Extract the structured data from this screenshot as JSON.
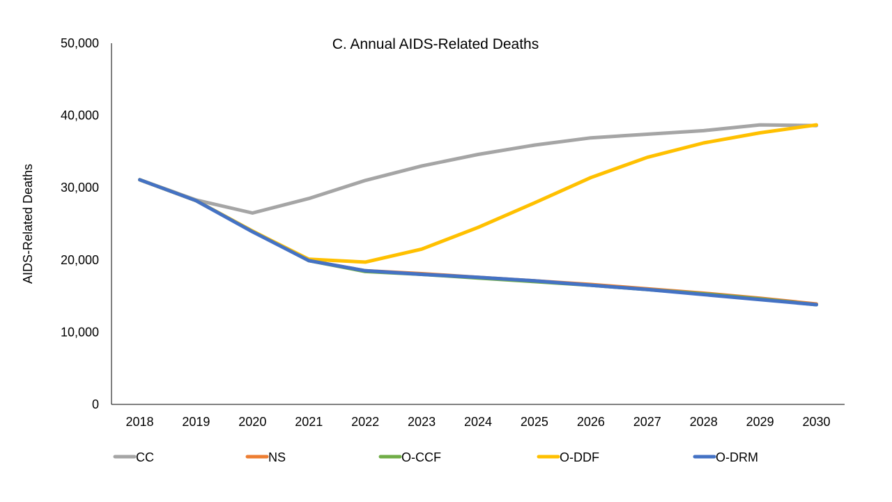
{
  "chart_data": {
    "type": "line",
    "title": "C. Annual AIDS-Related Deaths",
    "xlabel": "",
    "ylabel": "AIDS-Related Deaths",
    "ylim": [
      0,
      50000
    ],
    "yticks": [
      0,
      10000,
      20000,
      30000,
      40000,
      50000
    ],
    "ytick_labels": [
      "0",
      "10,000",
      "20,000",
      "30,000",
      "40,000",
      "50,000"
    ],
    "categories": [
      "2018",
      "2019",
      "2020",
      "2021",
      "2022",
      "2023",
      "2024",
      "2025",
      "2026",
      "2027",
      "2028",
      "2029",
      "2030"
    ],
    "grid": false,
    "legend_position": "bottom",
    "series": [
      {
        "name": "CC",
        "color": "#A5A5A5",
        "values": [
          31100,
          28300,
          26500,
          28500,
          31000,
          33000,
          34600,
          35900,
          36900,
          37400,
          37900,
          38700,
          38600
        ]
      },
      {
        "name": "NS",
        "color": "#ED7D31",
        "values": [
          31100,
          28200,
          24000,
          19900,
          18500,
          18100,
          17600,
          17100,
          16600,
          16000,
          15400,
          14700,
          13900
        ]
      },
      {
        "name": "O-CCF",
        "color": "#70AD47",
        "values": [
          31100,
          28200,
          24000,
          19900,
          18400,
          18000,
          17500,
          17000,
          16500,
          15900,
          15300,
          14600,
          13800
        ]
      },
      {
        "name": "O-DDF",
        "color": "#FFC000",
        "values": [
          31100,
          28200,
          24000,
          20100,
          19700,
          21500,
          24500,
          27900,
          31400,
          34200,
          36200,
          37600,
          38700
        ]
      },
      {
        "name": "O-DRM",
        "color": "#4472C4",
        "values": [
          31100,
          28200,
          23900,
          19900,
          18500,
          18000,
          17600,
          17100,
          16500,
          15900,
          15200,
          14500,
          13800
        ]
      }
    ]
  }
}
